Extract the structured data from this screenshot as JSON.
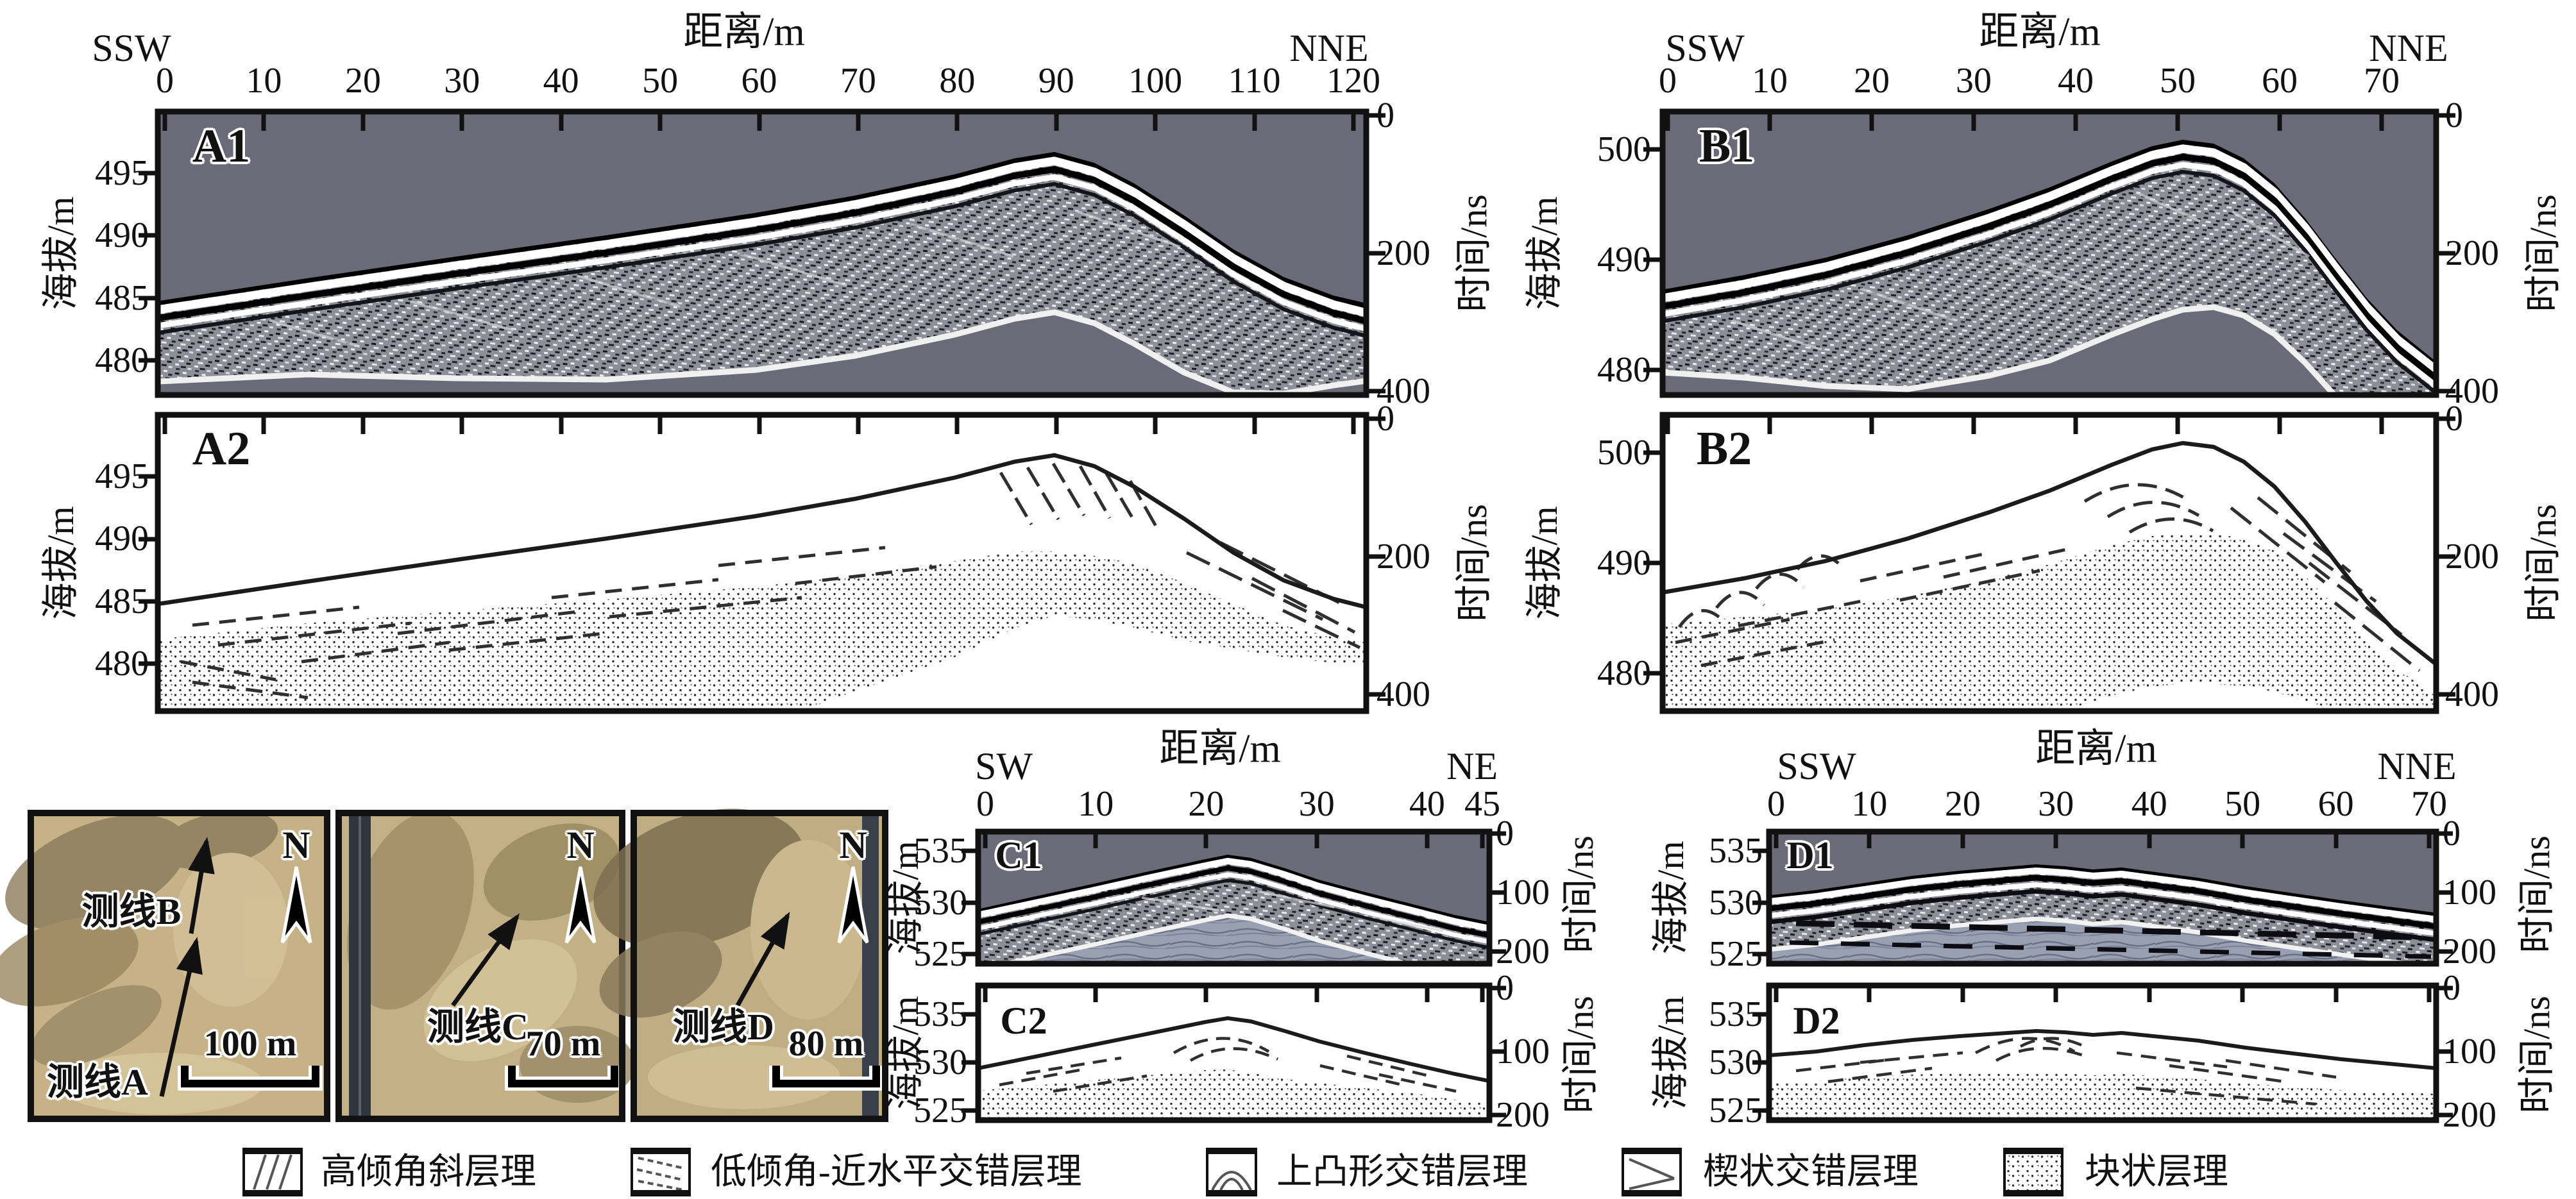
{
  "figure": {
    "background": "#ffffff"
  },
  "colors": {
    "radar_sky": "#6a6a78",
    "radar_body_mid": "#8e8e99",
    "radar_light_laminae": "#99a0b2",
    "panel_border": "#111111",
    "photo_sand": "#c7b288",
    "photo_shadow": "#8b7b5b",
    "road": "#30363d"
  },
  "panels": {
    "A": {
      "id1": "A1",
      "id2": "A2",
      "dir_left": "SSW",
      "dir_right": "NNE",
      "xlabel": "距离/m",
      "x_ticks": [
        "0",
        "10",
        "20",
        "30",
        "40",
        "50",
        "60",
        "70",
        "80",
        "90",
        "100",
        "110",
        "120"
      ],
      "elev_label": "海拔/m",
      "elev_ticks": [
        "495",
        "490",
        "485",
        "480"
      ],
      "time_label": "时间/ns",
      "time_ticks": [
        "0",
        "200",
        "400"
      ]
    },
    "B": {
      "id1": "B1",
      "id2": "B2",
      "dir_left": "SSW",
      "dir_right": "NNE",
      "xlabel": "距离/m",
      "x_ticks": [
        "0",
        "10",
        "20",
        "30",
        "40",
        "50",
        "60",
        "70"
      ],
      "elev_label": "海拔/m",
      "elev_ticks": [
        "500",
        "490",
        "480"
      ],
      "time_label": "时间/ns",
      "time_ticks": [
        "0",
        "200",
        "400"
      ]
    },
    "C": {
      "id1": "C1",
      "id2": "C2",
      "dir_left": "SW",
      "dir_right": "NE",
      "xlabel": "距离/m",
      "x_ticks": [
        "0",
        "10",
        "20",
        "30",
        "40",
        "45"
      ],
      "elev_label": "海拔/m",
      "elev_ticks": [
        "535",
        "530",
        "525"
      ],
      "time_label": "时间/ns",
      "time_ticks": [
        "0",
        "100",
        "200"
      ]
    },
    "D": {
      "id1": "D1",
      "id2": "D2",
      "dir_left": "SSW",
      "dir_right": "NNE",
      "xlabel": "距离/m",
      "x_ticks": [
        "0",
        "10",
        "20",
        "30",
        "40",
        "50",
        "60",
        "70"
      ],
      "elev_label": "海拔/m",
      "elev_ticks": [
        "535",
        "530",
        "525"
      ],
      "time_label": "时间/ns",
      "time_ticks": [
        "0",
        "100",
        "200"
      ]
    }
  },
  "photos": [
    {
      "label_top": "测线B",
      "label_bottom": "测线A",
      "north": "N",
      "scale": "100 m"
    },
    {
      "label": "测线C",
      "north": "N",
      "scale": "70 m"
    },
    {
      "label": "测线D",
      "north": "N",
      "scale": "80 m"
    }
  ],
  "legend": [
    {
      "name": "高倾角斜层理",
      "pattern": "steep-inclined-lines"
    },
    {
      "name": "低倾角-近水平交错层理",
      "pattern": "low-angle-dashes"
    },
    {
      "name": "上凸形交错层理",
      "pattern": "convex-up-arcs"
    },
    {
      "name": "楔状交错层理",
      "pattern": "wedge-lines"
    },
    {
      "name": "块状层理",
      "pattern": "stipple-dots"
    }
  ],
  "chart_data": [
    {
      "type": "line",
      "id": "A",
      "xlabel": "距离/m",
      "orientation": [
        "SSW",
        "NNE"
      ],
      "x_range": [
        0,
        120
      ],
      "left_axis": "海拔/m",
      "elev_ticks_m": [
        495,
        490,
        485,
        480
      ],
      "right_axis": "时间/ns",
      "time_ticks_ns": [
        0,
        200,
        400
      ],
      "surface_profile": {
        "distance_m": [
          0,
          15,
          30,
          45,
          60,
          70,
          80,
          86,
          90,
          94,
          98,
          103,
          108,
          113,
          118,
          121
        ],
        "elevation_m": [
          484.8,
          486.6,
          488.3,
          490.0,
          491.8,
          493.2,
          494.9,
          496.2,
          496.7,
          495.8,
          494.2,
          491.6,
          488.9,
          486.7,
          485.2,
          484.5
        ]
      }
    },
    {
      "type": "line",
      "id": "B",
      "xlabel": "距离/m",
      "orientation": [
        "SSW",
        "NNE"
      ],
      "x_range": [
        0,
        70
      ],
      "left_axis": "海拔/m",
      "elev_ticks_m": [
        500,
        490,
        480
      ],
      "right_axis": "时间/ns",
      "time_ticks_ns": [
        0,
        200,
        400
      ],
      "surface_profile": {
        "distance_m": [
          0,
          8,
          16,
          24,
          32,
          38,
          44,
          48,
          51,
          54,
          57,
          60,
          63,
          66,
          69,
          72,
          76
        ],
        "elevation_m": [
          487.3,
          488.6,
          490.2,
          492.2,
          494.6,
          496.6,
          498.9,
          500.3,
          500.9,
          500.5,
          499.2,
          496.9,
          493.7,
          490.1,
          486.6,
          483.6,
          480.8
        ]
      }
    },
    {
      "type": "line",
      "id": "C",
      "xlabel": "距离/m",
      "orientation": [
        "SW",
        "NE"
      ],
      "x_range": [
        0,
        45
      ],
      "left_axis": "海拔/m",
      "elev_ticks_m": [
        535,
        530,
        525
      ],
      "right_axis": "时间/ns",
      "time_ticks_ns": [
        0,
        100,
        200
      ],
      "surface_profile": {
        "distance_m": [
          0,
          5,
          10,
          15,
          20,
          22,
          24,
          27,
          30,
          34,
          38,
          42,
          45
        ],
        "elevation_m": [
          529.4,
          530.6,
          531.8,
          533.0,
          534.2,
          534.6,
          534.3,
          533.3,
          532.2,
          531.0,
          529.9,
          528.8,
          528.1
        ]
      }
    },
    {
      "type": "line",
      "id": "D",
      "xlabel": "距离/m",
      "orientation": [
        "SSW",
        "NNE"
      ],
      "x_range": [
        0,
        70
      ],
      "left_axis": "海拔/m",
      "elev_ticks_m": [
        535,
        530,
        525
      ],
      "right_axis": "时间/ns",
      "time_ticks_ns": [
        0,
        100,
        200
      ],
      "surface_profile": {
        "distance_m": [
          0,
          5,
          10,
          15,
          20,
          24,
          28,
          31,
          34,
          37,
          41,
          45,
          50,
          55,
          60,
          65,
          70
        ],
        "elevation_m": [
          530.7,
          531.2,
          531.9,
          532.6,
          533.1,
          533.4,
          533.7,
          533.5,
          533.2,
          533.4,
          532.9,
          532.4,
          531.6,
          530.9,
          530.2,
          529.6,
          529.0
        ]
      }
    }
  ]
}
